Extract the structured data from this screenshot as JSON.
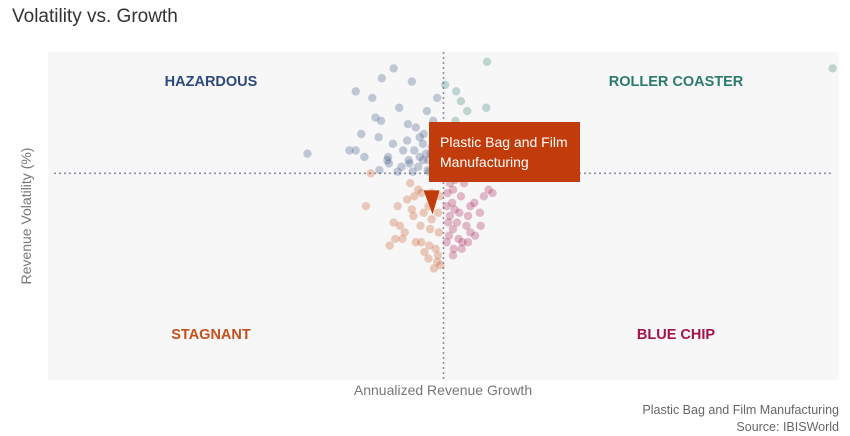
{
  "title": "Volatility vs. Growth",
  "source": {
    "line1": "Plastic Bag and Film Manufacturing",
    "line2": "Source: IBISWorld"
  },
  "colors": {
    "hazardous": "#2d4a7c",
    "roller_coaster": "#2a7a6e",
    "stagnant": "#c4501c",
    "blue_chip": "#a3134a",
    "highlight": "#c23b0a",
    "background": "#f7f7f7",
    "divider": "#8f8fa3"
  },
  "chart_data": {
    "type": "scatter",
    "title": "Volatility vs. Growth",
    "xlabel": "Annualized Revenue Growth",
    "ylabel": "Revenue Volatility (%)",
    "x_ticks": "none",
    "y_ticks": "none",
    "xlim": [
      -50,
      50
    ],
    "ylim": [
      0,
      100
    ],
    "grid": false,
    "divider_x": 0,
    "divider_y": 63,
    "quadrants": [
      {
        "name": "HAZARDOUS",
        "position": "top-left",
        "color": "#2d4a7c"
      },
      {
        "name": "ROLLER COASTER",
        "position": "top-right",
        "color": "#2a7a6e"
      },
      {
        "name": "STAGNANT",
        "position": "bottom-left",
        "color": "#c4501c"
      },
      {
        "name": "BLUE CHIP",
        "position": "bottom-right",
        "color": "#a3134a"
      }
    ],
    "highlight": {
      "label": "Plastic Bag and Film Manufacturing",
      "label_lines": [
        "Plastic Bag and Film",
        "Manufacturing"
      ],
      "x": -1,
      "y": 56,
      "color": "#c23b0a"
    },
    "series": [
      {
        "quadrant": "hazardous",
        "points": [
          [
            -6.3,
            95
          ],
          [
            -4.0,
            91
          ],
          [
            -9.0,
            86
          ],
          [
            -7.8,
            92
          ],
          [
            -5.6,
            83
          ],
          [
            -7.9,
            79
          ],
          [
            -17.2,
            69
          ],
          [
            -11.9,
            70
          ],
          [
            -7.0,
            68
          ],
          [
            -4.3,
            66
          ],
          [
            -4.6,
            73
          ],
          [
            -2.5,
            75
          ],
          [
            -1.3,
            79
          ],
          [
            -1.5,
            71
          ],
          [
            -1.0,
            73
          ],
          [
            -2.6,
            67
          ],
          [
            -3.2,
            65
          ],
          [
            -2.0,
            64
          ],
          [
            -0.7,
            65
          ],
          [
            -5.1,
            70
          ],
          [
            -8.2,
            74
          ],
          [
            -10.4,
            75
          ],
          [
            -8.6,
            80
          ],
          [
            -11.1,
            88
          ],
          [
            -0.8,
            86
          ],
          [
            -2.1,
            82
          ],
          [
            -4.5,
            78
          ],
          [
            -3.5,
            77
          ],
          [
            -1.6,
            69
          ],
          [
            -2.6,
            72
          ],
          [
            -3.7,
            70
          ],
          [
            -6.4,
            72
          ],
          [
            -4.4,
            67
          ],
          [
            -0.4,
            70
          ],
          [
            -1.0,
            75
          ],
          [
            -3.0,
            68
          ],
          [
            -0.2,
            67
          ],
          [
            -5.3,
            65
          ],
          [
            -6.9,
            66
          ],
          [
            -8.1,
            64
          ],
          [
            -7.1,
            67
          ],
          [
            -2.2,
            69
          ],
          [
            -5.8,
            63.5
          ],
          [
            -3.9,
            63.5
          ],
          [
            -1.8,
            63.5
          ],
          [
            -0.4,
            64
          ],
          [
            -11.1,
            70
          ],
          [
            -10.0,
            68
          ],
          [
            -1.9,
            67
          ],
          [
            -3.0,
            74
          ]
        ]
      },
      {
        "quadrant": "roller_coaster",
        "points": [
          [
            5.5,
            97
          ],
          [
            49.2,
            95
          ],
          [
            0.2,
            90
          ],
          [
            2.2,
            85
          ],
          [
            1.6,
            88
          ],
          [
            5.4,
            83
          ],
          [
            3.0,
            82
          ],
          [
            1.5,
            79
          ],
          [
            0.5,
            76
          ],
          [
            2.6,
            74
          ],
          [
            1.5,
            72
          ],
          [
            3.3,
            69
          ],
          [
            1.9,
            67
          ],
          [
            0.5,
            65
          ],
          [
            1.0,
            71
          ]
        ]
      },
      {
        "quadrant": "stagnant",
        "points": [
          [
            -9.2,
            63
          ],
          [
            -4.2,
            60
          ],
          [
            -3.2,
            58
          ],
          [
            -1.5,
            57
          ],
          [
            -4.6,
            55
          ],
          [
            -5.8,
            53
          ],
          [
            -0.5,
            56
          ],
          [
            -2.5,
            51
          ],
          [
            -9.8,
            53
          ],
          [
            -6.3,
            48
          ],
          [
            -4.9,
            45
          ],
          [
            -3.8,
            50
          ],
          [
            -2.9,
            47
          ],
          [
            -1.7,
            46
          ],
          [
            -0.6,
            45
          ],
          [
            -1.0,
            40
          ],
          [
            -1.8,
            41
          ],
          [
            -0.4,
            35
          ],
          [
            -1.2,
            34
          ],
          [
            -5.2,
            43
          ],
          [
            -6.1,
            43
          ],
          [
            -5.5,
            47
          ],
          [
            -3.5,
            42
          ],
          [
            -2.4,
            39
          ],
          [
            -0.8,
            36
          ],
          [
            -6.8,
            41
          ],
          [
            -1.5,
            49
          ],
          [
            -2.8,
            57
          ],
          [
            -3.7,
            56
          ],
          [
            -1.9,
            53
          ],
          [
            -4.0,
            52
          ],
          [
            -0.7,
            51
          ],
          [
            -1.9,
            37
          ],
          [
            -0.7,
            38
          ],
          [
            -2.8,
            42
          ]
        ]
      },
      {
        "quadrant": "blue_chip",
        "points": [
          [
            1.5,
            61
          ],
          [
            2.6,
            60
          ],
          [
            1.2,
            58
          ],
          [
            2.2,
            56
          ],
          [
            1.1,
            54
          ],
          [
            3.4,
            53
          ],
          [
            2.0,
            51
          ],
          [
            0.8,
            50
          ],
          [
            1.7,
            48
          ],
          [
            2.9,
            47
          ],
          [
            1.2,
            46
          ],
          [
            0.7,
            44
          ],
          [
            1.9,
            43
          ],
          [
            3.1,
            42
          ],
          [
            2.3,
            40
          ],
          [
            1.2,
            38
          ],
          [
            0.4,
            42
          ],
          [
            5.7,
            58
          ],
          [
            6.2,
            57
          ],
          [
            5.1,
            56
          ],
          [
            4.6,
            51
          ],
          [
            3.9,
            54
          ],
          [
            4.7,
            47
          ],
          [
            3.1,
            50
          ],
          [
            0.5,
            57
          ],
          [
            0.8,
            60
          ],
          [
            1.6,
            63.5
          ],
          [
            1.0,
            63
          ],
          [
            2.1,
            62
          ],
          [
            0.4,
            53
          ],
          [
            2.4,
            42
          ],
          [
            1.3,
            40
          ],
          [
            3.4,
            45
          ],
          [
            0.6,
            48
          ],
          [
            1.4,
            52
          ],
          [
            4.0,
            44
          ]
        ]
      }
    ]
  }
}
